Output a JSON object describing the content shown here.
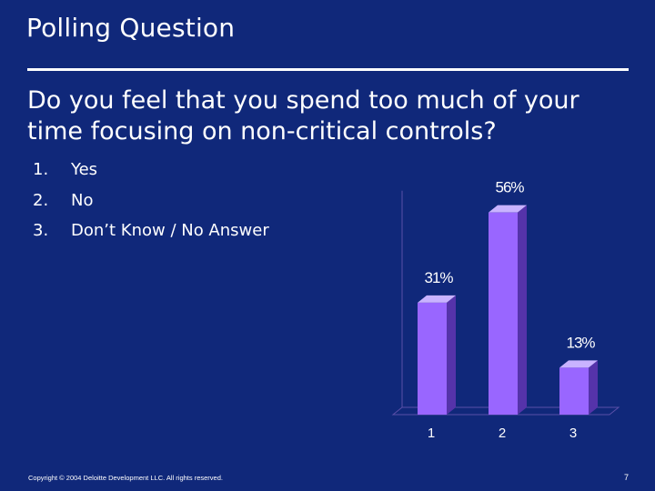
{
  "slide": {
    "title": "Polling Question",
    "question": "Do you feel that you spend too much of your time focusing on non-critical controls?",
    "options": [
      {
        "number": "1.",
        "label": "Yes"
      },
      {
        "number": "2.",
        "label": "No"
      },
      {
        "number": "3.",
        "label": "Don’t Know / No Answer"
      }
    ],
    "footer": "Copyright © 2004 Deloitte Development LLC. All rights reserved.",
    "page_number": "7"
  },
  "colors": {
    "background": "#10287a",
    "bar_front": "#9966ff",
    "bar_side": "#5533aa",
    "bar_top": "#c9b3ff",
    "axis": "#5a4fa8"
  },
  "chart_data": {
    "type": "bar",
    "categories": [
      "1",
      "2",
      "3"
    ],
    "values": [
      31,
      56,
      13
    ],
    "data_labels": [
      "31%",
      "56%",
      "13%"
    ],
    "ylim": [
      0,
      60
    ],
    "title": "",
    "xlabel": "",
    "ylabel": "",
    "grid": false,
    "legend": "none"
  }
}
